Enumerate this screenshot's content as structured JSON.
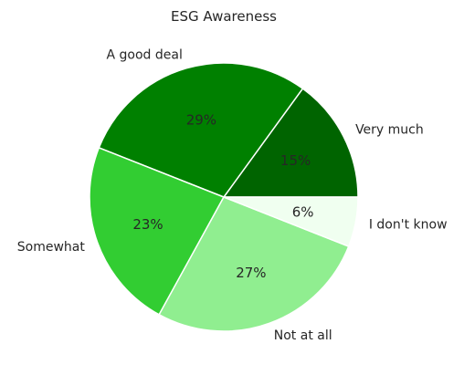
{
  "chart_data": {
    "type": "pie",
    "title": "ESG Awareness",
    "categories": [
      "Very much",
      "A good deal",
      "Somewhat",
      "Not at all",
      "I don't know"
    ],
    "values": [
      15,
      29,
      23,
      27,
      6
    ],
    "value_labels": [
      "15%",
      "29%",
      "23%",
      "27%",
      "6%"
    ],
    "colors": [
      "#006400",
      "#008000",
      "#32cd32",
      "#90ee90",
      "#f0fff0"
    ],
    "start_angle_deg": 0,
    "direction": "counterclockwise",
    "edge_color": "#ffffff"
  }
}
